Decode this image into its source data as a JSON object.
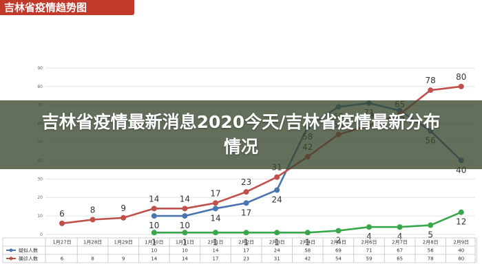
{
  "header": {
    "title": "吉林省疫情趋势图"
  },
  "overlay": {
    "headline": "吉林省疫情最新消息2020今天/吉林省疫情最新分布情况"
  },
  "chart_data": {
    "type": "line",
    "title": "吉林省疫情趋势图",
    "categories": [
      "1月27日",
      "1月28日",
      "1月29日",
      "1月30日",
      "1月31日",
      "2月1日",
      "2月2日",
      "2月3日",
      "2月4日",
      "2月5日",
      "2月6日",
      "2月7日",
      "2月8日",
      "2月9日"
    ],
    "y_ticks": [
      0,
      10,
      20,
      30,
      40,
      50,
      60,
      70,
      80,
      90
    ],
    "ylim": [
      0,
      90
    ],
    "grid": true,
    "series": [
      {
        "name": "疑似人数",
        "color": "#4a74b0",
        "values": [
          null,
          null,
          null,
          10,
          10,
          14,
          17,
          24,
          58,
          69,
          71,
          67,
          56,
          40
        ]
      },
      {
        "name": "确诊人数",
        "color": "#c0504d",
        "values": [
          6,
          8,
          9,
          14,
          14,
          17,
          23,
          31,
          42,
          54,
          59,
          65,
          78,
          80
        ]
      },
      {
        "name": "",
        "color": "#3aa64c",
        "values": [
          null,
          null,
          null,
          1,
          1,
          1,
          1,
          1,
          1,
          2,
          4,
          4,
          5,
          12
        ]
      }
    ]
  }
}
